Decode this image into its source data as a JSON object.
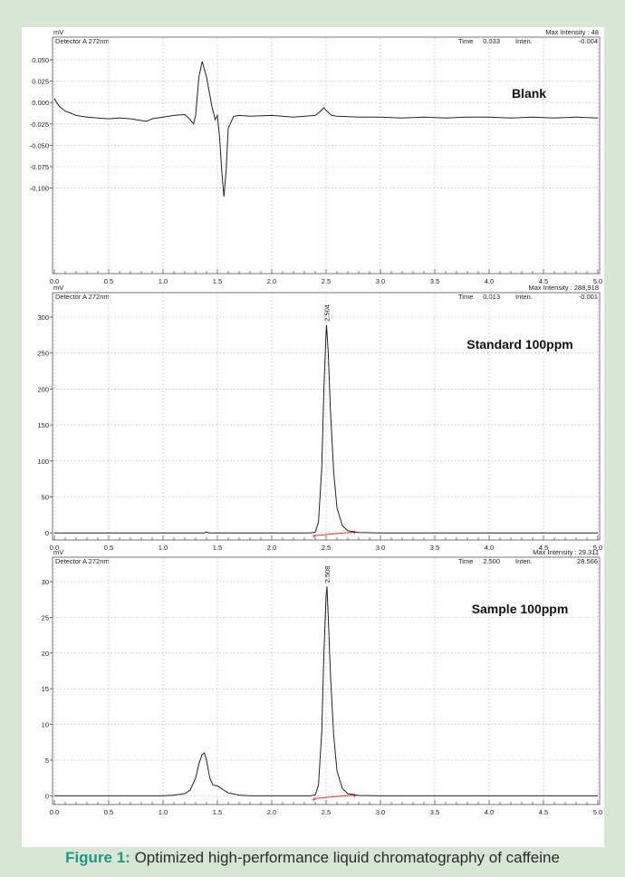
{
  "panels": [
    {
      "id": "blank",
      "ylabel": "mV",
      "detector": "Detector A 272nm",
      "max_intensity_text": "Max Intensity :   48",
      "time_label": "Time",
      "time_value": "0.033",
      "inten_label": "Inten.",
      "inten_value": "-0.004",
      "title": "Blank",
      "peak_label": "",
      "y_ticks": [
        "0.050",
        "0.025",
        "0.000",
        "-0.025",
        "-0.050",
        "-0.075",
        "-0.100"
      ],
      "x_ticks": [
        "0.0",
        "0.5",
        "1.0",
        "1.5",
        "2.0",
        "2.5",
        "3.0",
        "3.5",
        "4.0",
        "4.5",
        "5.0"
      ]
    },
    {
      "id": "standard",
      "ylabel": "mV",
      "detector": "Detector A 272nm",
      "max_intensity_text": "Max Intensity : 288,918",
      "time_label": "Time",
      "time_value": "0.013",
      "inten_label": "Inten.",
      "inten_value": "-0.001",
      "title": "Standard 100ppm",
      "peak_label": "2.504",
      "y_ticks": [
        "300",
        "250",
        "200",
        "150",
        "100",
        "50",
        "0"
      ],
      "x_ticks": [
        "0.0",
        "0.5",
        "1.0",
        "1.5",
        "2.0",
        "2.5",
        "3.0",
        "3.5",
        "4.0",
        "4.5",
        "5.0"
      ]
    },
    {
      "id": "sample",
      "ylabel": "mV",
      "detector": "Detector A 272nm",
      "max_intensity_text": "Max Intensity : 29,311",
      "time_label": "Time",
      "time_value": "2.500",
      "inten_label": "Inten.",
      "inten_value": "28.566",
      "title": "Sample 100ppm",
      "peak_label": "2.508",
      "y_ticks": [
        "30",
        "25",
        "20",
        "15",
        "10",
        "5",
        "0"
      ],
      "x_ticks": [
        "0.0",
        "0.5",
        "1.0",
        "1.5",
        "2.0",
        "2.5",
        "3.0",
        "3.5",
        "4.0",
        "4.5",
        "5.0"
      ]
    }
  ],
  "caption": {
    "label": "Figure 1:",
    "text": " Optimized high-performance liquid chromatography of caffeine"
  },
  "colors": {
    "background": "#d9e6d7",
    "trace": "#222222",
    "baseline": "#e03030",
    "caption_label": "#1c9a84",
    "grid": "#b8b8b8"
  },
  "chart_data": [
    {
      "type": "line",
      "title": "Blank",
      "xlabel": "",
      "ylabel": "mV",
      "xlim": [
        0,
        5
      ],
      "ylim": [
        -0.11,
        0.06
      ],
      "grid": true,
      "series": [
        {
          "x": [
            0.0,
            0.02,
            0.05,
            0.1,
            0.2,
            0.3,
            0.4,
            0.5,
            0.6,
            0.7,
            0.8,
            0.85,
            0.9,
            1.0,
            1.1,
            1.2,
            1.25,
            1.28,
            1.3,
            1.33,
            1.36,
            1.4,
            1.45,
            1.48,
            1.5,
            1.52,
            1.54,
            1.56,
            1.58,
            1.6,
            1.65,
            1.7,
            1.8,
            2.0,
            2.2,
            2.4,
            2.45,
            2.48,
            2.5,
            2.55,
            2.6,
            2.8,
            3.0,
            3.2,
            3.4,
            3.6,
            3.8,
            4.0,
            4.2,
            4.4,
            4.6,
            4.8,
            5.0
          ],
          "y": [
            0.005,
            0.0,
            -0.005,
            -0.01,
            -0.015,
            -0.017,
            -0.018,
            -0.019,
            -0.018,
            -0.019,
            -0.021,
            -0.022,
            -0.019,
            -0.017,
            -0.015,
            -0.014,
            -0.02,
            -0.025,
            -0.015,
            0.03,
            0.048,
            0.03,
            -0.005,
            -0.02,
            -0.015,
            -0.04,
            -0.08,
            -0.11,
            -0.08,
            -0.03,
            -0.016,
            -0.015,
            -0.016,
            -0.015,
            -0.017,
            -0.015,
            -0.01,
            -0.006,
            -0.009,
            -0.015,
            -0.016,
            -0.017,
            -0.017,
            -0.018,
            -0.017,
            -0.018,
            -0.017,
            -0.017,
            -0.018,
            -0.017,
            -0.018,
            -0.017,
            -0.018
          ]
        }
      ]
    },
    {
      "type": "line",
      "title": "Standard 100ppm",
      "xlabel": "",
      "ylabel": "mV",
      "xlim": [
        0,
        5
      ],
      "ylim": [
        -10,
        305
      ],
      "grid": true,
      "peak": {
        "retention_time": 2.504,
        "max_intensity": 288.918
      },
      "series": [
        {
          "x": [
            0.0,
            0.5,
            1.0,
            1.38,
            1.4,
            1.42,
            2.0,
            2.35,
            2.4,
            2.43,
            2.46,
            2.48,
            2.5,
            2.504,
            2.52,
            2.54,
            2.57,
            2.6,
            2.65,
            2.7,
            2.8,
            3.0,
            3.5,
            4.0,
            4.5,
            5.0
          ],
          "y": [
            0,
            0,
            0,
            0,
            1.5,
            0,
            0,
            0,
            1,
            15,
            90,
            200,
            280,
            288.9,
            250,
            170,
            85,
            35,
            10,
            3,
            0.5,
            0,
            0,
            0,
            0,
            0
          ]
        }
      ]
    },
    {
      "type": "line",
      "title": "Sample 100ppm",
      "xlabel": "",
      "ylabel": "mV",
      "xlim": [
        0,
        5
      ],
      "ylim": [
        -1,
        30.5
      ],
      "grid": true,
      "peak": {
        "retention_time": 2.508,
        "max_intensity": 29.311
      },
      "series": [
        {
          "x": [
            0.0,
            0.5,
            1.0,
            1.1,
            1.2,
            1.25,
            1.3,
            1.33,
            1.36,
            1.38,
            1.4,
            1.43,
            1.46,
            1.5,
            1.55,
            1.6,
            1.7,
            1.8,
            2.0,
            2.35,
            2.4,
            2.43,
            2.46,
            2.48,
            2.5,
            2.508,
            2.52,
            2.54,
            2.57,
            2.6,
            2.65,
            2.7,
            2.8,
            3.0,
            3.5,
            4.0,
            4.5,
            5.0
          ],
          "y": [
            0,
            0,
            0,
            0.1,
            0.3,
            0.8,
            2.5,
            4.5,
            5.8,
            6.0,
            5.0,
            2.5,
            1.5,
            1.4,
            0.9,
            0.4,
            0.1,
            0,
            0,
            0,
            0.1,
            1.5,
            9,
            20,
            28,
            29.3,
            25,
            17,
            8.5,
            3.5,
            1.0,
            0.3,
            0.05,
            0,
            0,
            0,
            0,
            0
          ]
        }
      ]
    }
  ]
}
